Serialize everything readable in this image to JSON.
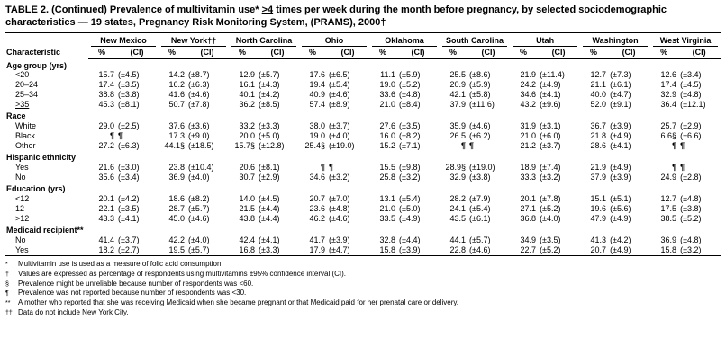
{
  "title": {
    "pre": "TABLE 2. (Continued) Prevalence of multivitamin use* ",
    "geq": ">4",
    "post": " times per week during the month before pregnancy, by selected sociodemographic characteristics — 19 states, Pregnancy Risk Monitoring System, (PRAMS), 2000†"
  },
  "char_header": "Characteristic",
  "subheaders": {
    "pct": "%",
    "ci": "(CI)"
  },
  "columns": [
    "New Mexico",
    "New York††",
    "North Carolina",
    "Ohio",
    "Oklahoma",
    "South Carolina",
    "Utah",
    "Washington",
    "West Virginia"
  ],
  "sections": [
    {
      "label": "Age group (yrs)",
      "rows": [
        {
          "label": "<20",
          "cells": [
            "15.7",
            "(±4.5)",
            "14.2",
            "(±8.7)",
            "12.9",
            "(±5.7)",
            "17.6",
            "(±6.5)",
            "11.1",
            "(±5.9)",
            "25.5",
            "(±8.6)",
            "21.9",
            "(±11.4)",
            "12.7",
            "(±7.3)",
            "12.6",
            "(±3.4)"
          ]
        },
        {
          "label": "20–24",
          "cells": [
            "17.4",
            "(±3.5)",
            "16.2",
            "(±6.3)",
            "16.1",
            "(±4.3)",
            "19.4",
            "(±5.4)",
            "19.0",
            "(±5.2)",
            "20.9",
            "(±5.9)",
            "24.2",
            "(±4.9)",
            "21.1",
            "(±6.1)",
            "17.4",
            "(±4.5)"
          ]
        },
        {
          "label": "25–34",
          "cells": [
            "38.8",
            "(±3.8)",
            "41.6",
            "(±4.6)",
            "40.1",
            "(±4.2)",
            "40.9",
            "(±4.6)",
            "33.6",
            "(±4.8)",
            "42.1",
            "(±5.8)",
            "34.6",
            "(±4.1)",
            "40.0",
            "(±4.7)",
            "32.9",
            "(±4.8)"
          ]
        },
        {
          "label": ">35",
          "u": true,
          "cells": [
            "45.3",
            "(±8.1)",
            "50.7",
            "(±7.8)",
            "36.2",
            "(±8.5)",
            "57.4",
            "(±8.9)",
            "21.0",
            "(±8.4)",
            "37.9",
            "(±11.6)",
            "43.2",
            "(±9.6)",
            "52.0",
            "(±9.1)",
            "36.4",
            "(±12.1)"
          ]
        }
      ]
    },
    {
      "label": "Race",
      "rows": [
        {
          "label": "White",
          "cells": [
            "29.0",
            "(±2.5)",
            "37.6",
            "(±3.6)",
            "33.2",
            "(±3.3)",
            "38.0",
            "(±3.7)",
            "27.6",
            "(±3.5)",
            "35.9",
            "(±4.6)",
            "31.9",
            "(±3.1)",
            "36.7",
            "(±3.9)",
            "25.7",
            "(±2.9)"
          ]
        },
        {
          "label": "Black",
          "cells": [
            "¶",
            "¶",
            "17.3",
            "(±9.0)",
            "20.0",
            "(±5.0)",
            "19.0",
            "(±4.0)",
            "16.0",
            "(±8.2)",
            "26.5",
            "(±6.2)",
            "21.0",
            "(±6.0)",
            "21.8",
            "(±4.9)",
            "6.6§",
            "(±6.6)"
          ]
        },
        {
          "label": "Other",
          "cells": [
            "27.2",
            "(±6.3)",
            "44.1§",
            "(±18.5)",
            "15.7§",
            "(±12.8)",
            "25.4§",
            "(±19.0)",
            "15.2",
            "(±7.1)",
            "¶",
            "¶",
            "21.2",
            "(±3.7)",
            "28.6",
            "(±4.1)",
            "¶",
            "¶"
          ]
        }
      ]
    },
    {
      "label": "Hispanic ethnicity",
      "rows": [
        {
          "label": "Yes",
          "cells": [
            "21.6",
            "(±3.0)",
            "23.8",
            "(±10.4)",
            "20.6",
            "(±8.1)",
            "¶",
            "¶",
            "15.5",
            "(±9.8)",
            "28.9§",
            "(±19.0)",
            "18.9",
            "(±7.4)",
            "21.9",
            "(±4.9)",
            "¶",
            "¶"
          ]
        },
        {
          "label": "No",
          "cells": [
            "35.6",
            "(±3.4)",
            "36.9",
            "(±4.0)",
            "30.7",
            "(±2.9)",
            "34.6",
            "(±3.2)",
            "25.8",
            "(±3.2)",
            "32.9",
            "(±3.8)",
            "33.3",
            "(±3.2)",
            "37.9",
            "(±3.9)",
            "24.9",
            "(±2.8)"
          ]
        }
      ]
    },
    {
      "label": "Education (yrs)",
      "rows": [
        {
          "label": "<12",
          "cells": [
            "20.1",
            "(±4.2)",
            "18.6",
            "(±8.2)",
            "14.0",
            "(±4.5)",
            "20.7",
            "(±7.0)",
            "13.1",
            "(±5.4)",
            "28.2",
            "(±7.9)",
            "20.1",
            "(±7.8)",
            "15.1",
            "(±5.1)",
            "12.7",
            "(±4.8)"
          ]
        },
        {
          "label": "12",
          "cells": [
            "22.1",
            "(±3.5)",
            "28.7",
            "(±5.7)",
            "21.5",
            "(±4.4)",
            "23.6",
            "(±4.8)",
            "21.0",
            "(±5.0)",
            "24.1",
            "(±5.4)",
            "27.1",
            "(±5.2)",
            "19.6",
            "(±5.6)",
            "17.5",
            "(±3.8)"
          ]
        },
        {
          "label": ">12",
          "cells": [
            "43.3",
            "(±4.1)",
            "45.0",
            "(±4.6)",
            "43.8",
            "(±4.4)",
            "46.2",
            "(±4.6)",
            "33.5",
            "(±4.9)",
            "43.5",
            "(±6.1)",
            "36.8",
            "(±4.0)",
            "47.9",
            "(±4.9)",
            "38.5",
            "(±5.2)"
          ]
        }
      ]
    },
    {
      "label": "Medicaid recipient**",
      "rows": [
        {
          "label": "No",
          "cells": [
            "41.4",
            "(±3.7)",
            "42.2",
            "(±4.0)",
            "42.4",
            "(±4.1)",
            "41.7",
            "(±3.9)",
            "32.8",
            "(±4.4)",
            "44.1",
            "(±5.7)",
            "34.9",
            "(±3.5)",
            "41.3",
            "(±4.2)",
            "36.9",
            "(±4.8)"
          ]
        },
        {
          "label": "Yes",
          "cells": [
            "18.2",
            "(±2.7)",
            "19.5",
            "(±5.7)",
            "16.8",
            "(±3.3)",
            "17.9",
            "(±4.7)",
            "15.8",
            "(±3.9)",
            "22.8",
            "(±4.6)",
            "22.7",
            "(±5.2)",
            "20.7",
            "(±4.9)",
            "15.8",
            "(±3.2)"
          ]
        }
      ]
    }
  ],
  "footnotes": [
    {
      "marker": "*",
      "text": "Multivitamin use is used as a measure of folic acid consumption."
    },
    {
      "marker": "†",
      "text": "Values are expressed as percentage of respondents using multivitamins ±95% confidence interval (CI)."
    },
    {
      "marker": "§",
      "text": "Prevalence might be unreliable because number of respondents was <60."
    },
    {
      "marker": "¶",
      "text": "Prevalence was not reported because number of respondents was <30."
    },
    {
      "marker": "**",
      "text": "A mother who reported that she was receiving Medicaid when she became pregnant or that Medicaid paid for her prenatal care or delivery."
    },
    {
      "marker": "††",
      "text": "Data do not include New York City."
    }
  ]
}
